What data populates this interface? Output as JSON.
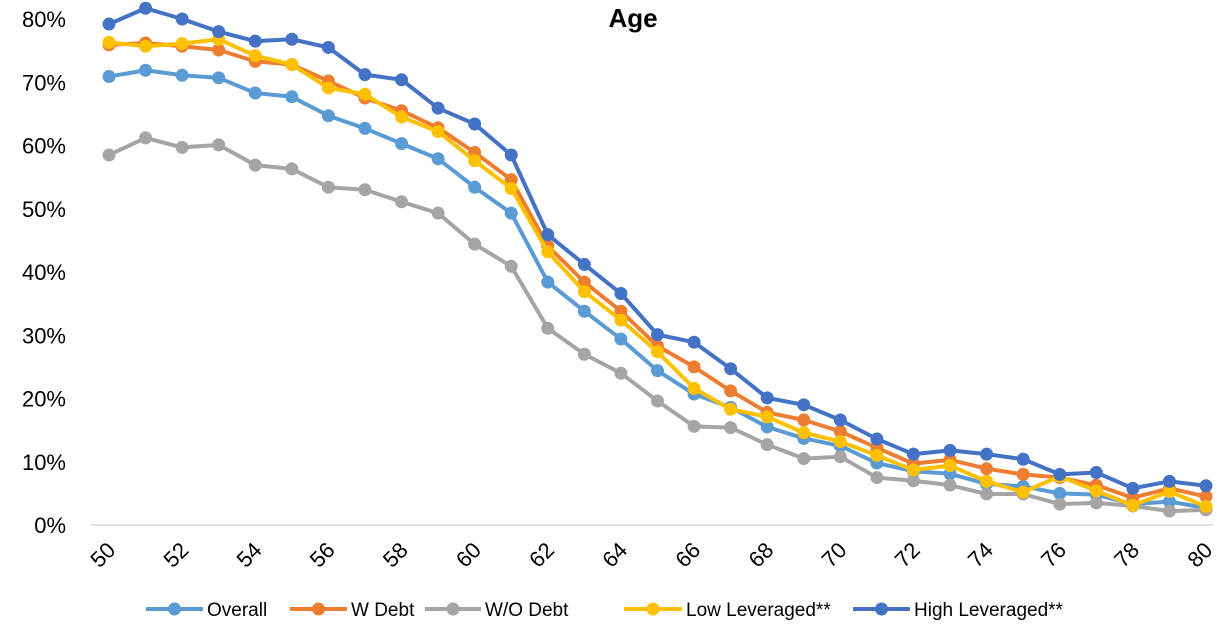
{
  "chart_data": {
    "type": "line",
    "title": "Age",
    "xlabel": "",
    "ylabel": "",
    "x": [
      50,
      51,
      52,
      53,
      54,
      55,
      56,
      57,
      58,
      59,
      60,
      61,
      62,
      63,
      64,
      65,
      66,
      67,
      68,
      69,
      70,
      71,
      72,
      73,
      74,
      75,
      76,
      77,
      78,
      79,
      80
    ],
    "x_tick_labels": [
      "50",
      "52",
      "54",
      "56",
      "58",
      "60",
      "62",
      "64",
      "66",
      "68",
      "70",
      "72",
      "74",
      "76",
      "78",
      "80"
    ],
    "y_tick_labels": [
      "0%",
      "10%",
      "20%",
      "30%",
      "40%",
      "50%",
      "60%",
      "70%",
      "80%"
    ],
    "ylim": [
      0,
      0.8
    ],
    "grid": false,
    "legend_position": "bottom",
    "series": [
      {
        "name": "Overall",
        "color": "#5B9BD5",
        "values": [
          0.709,
          0.719,
          0.711,
          0.707,
          0.683,
          0.677,
          0.647,
          0.627,
          0.603,
          0.579,
          0.534,
          0.493,
          0.384,
          0.338,
          0.294,
          0.244,
          0.207,
          0.186,
          0.155,
          0.137,
          0.125,
          0.098,
          0.085,
          0.081,
          0.065,
          0.061,
          0.05,
          0.048,
          0.033,
          0.037,
          0.027
        ]
      },
      {
        "name": "W Debt",
        "color": "#ED7D31",
        "values": [
          0.759,
          0.762,
          0.757,
          0.751,
          0.733,
          0.728,
          0.702,
          0.675,
          0.655,
          0.628,
          0.589,
          0.546,
          0.441,
          0.384,
          0.338,
          0.283,
          0.25,
          0.212,
          0.178,
          0.166,
          0.148,
          0.122,
          0.097,
          0.103,
          0.089,
          0.08,
          0.075,
          0.063,
          0.043,
          0.058,
          0.045
        ]
      },
      {
        "name": "W/O Debt",
        "color": "#A5A5A5",
        "values": [
          0.585,
          0.612,
          0.597,
          0.601,
          0.569,
          0.563,
          0.534,
          0.53,
          0.511,
          0.493,
          0.444,
          0.409,
          0.311,
          0.27,
          0.24,
          0.196,
          0.156,
          0.154,
          0.127,
          0.105,
          0.108,
          0.075,
          0.07,
          0.063,
          0.049,
          0.049,
          0.033,
          0.035,
          0.03,
          0.022,
          0.024
        ]
      },
      {
        "name": "Low Leveraged**",
        "color": "#FFC000",
        "values": [
          0.763,
          0.757,
          0.761,
          0.768,
          0.742,
          0.728,
          0.691,
          0.681,
          0.645,
          0.622,
          0.576,
          0.532,
          0.432,
          0.369,
          0.324,
          0.274,
          0.216,
          0.183,
          0.171,
          0.146,
          0.132,
          0.11,
          0.087,
          0.094,
          0.069,
          0.052,
          0.077,
          0.054,
          0.031,
          0.053,
          0.029
        ]
      },
      {
        "name": "High Leveraged**",
        "color": "#4472C4",
        "values": [
          0.792,
          0.817,
          0.8,
          0.78,
          0.765,
          0.768,
          0.755,
          0.712,
          0.704,
          0.659,
          0.634,
          0.585,
          0.459,
          0.412,
          0.366,
          0.301,
          0.289,
          0.247,
          0.201,
          0.19,
          0.166,
          0.136,
          0.112,
          0.118,
          0.112,
          0.104,
          0.08,
          0.083,
          0.058,
          0.069,
          0.062
        ]
      }
    ]
  }
}
